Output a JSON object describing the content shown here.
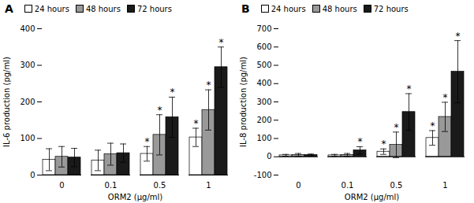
{
  "chart_data": [
    {
      "type": "bar",
      "title": "A",
      "ylabel": "IL-6 production (pg/ml)",
      "xlabel": "ORM2 (μg/ml)",
      "categories": [
        "0",
        "0.1",
        "0.5",
        "1"
      ],
      "series": [
        {
          "name": "24 hours",
          "color": "#ffffff",
          "values": [
            42,
            40,
            58,
            103
          ],
          "errors": [
            30,
            28,
            20,
            25
          ]
        },
        {
          "name": "48 hours",
          "color": "#999999",
          "values": [
            50,
            57,
            110,
            178
          ],
          "errors": [
            28,
            30,
            55,
            55
          ]
        },
        {
          "name": "72 hours",
          "color": "#1a1a1a",
          "values": [
            48,
            60,
            158,
            295
          ],
          "errors": [
            25,
            25,
            55,
            55
          ]
        }
      ],
      "annotations": [
        {
          "series": "24 hours",
          "category": "0.5",
          "text": "*"
        },
        {
          "series": "24 hours",
          "category": "1",
          "text": "*"
        },
        {
          "series": "48 hours",
          "category": "0.5",
          "text": "*"
        },
        {
          "series": "48 hours",
          "category": "1",
          "text": "*"
        },
        {
          "series": "72 hours",
          "category": "0.5",
          "text": "*"
        },
        {
          "series": "72 hours",
          "category": "1",
          "text": "*"
        }
      ],
      "ylim": [
        0,
        400
      ],
      "yticks": [
        0,
        100,
        200,
        300,
        400
      ],
      "grid": false,
      "legend": "upper left"
    },
    {
      "type": "bar",
      "title": "B",
      "ylabel": "IL-8 production (pg/ml)",
      "xlabel": "ORM2 (μg/ml)",
      "categories": [
        "0",
        "0.1",
        "0.5",
        "1"
      ],
      "series": [
        {
          "name": "24 hours",
          "color": "#ffffff",
          "values": [
            8,
            8,
            28,
            103
          ],
          "errors": [
            5,
            5,
            15,
            40
          ]
        },
        {
          "name": "48 hours",
          "color": "#999999",
          "values": [
            10,
            10,
            65,
            218
          ],
          "errors": [
            8,
            8,
            70,
            80
          ]
        },
        {
          "name": "72 hours",
          "color": "#1a1a1a",
          "values": [
            10,
            35,
            245,
            465
          ],
          "errors": [
            5,
            20,
            100,
            170
          ]
        }
      ],
      "annotations": [
        {
          "series": "24 hours",
          "category": "0.5",
          "text": "*"
        },
        {
          "series": "24 hours",
          "category": "1",
          "text": "*"
        },
        {
          "series": "48 hours",
          "category": "0.5",
          "text": "*"
        },
        {
          "series": "48 hours",
          "category": "1",
          "text": "*"
        },
        {
          "series": "72 hours",
          "category": "0.1",
          "text": "*"
        },
        {
          "series": "72 hours",
          "category": "0.5",
          "text": "*"
        },
        {
          "series": "72 hours",
          "category": "1",
          "text": "*"
        }
      ],
      "ylim": [
        -100,
        700
      ],
      "yticks": [
        -100,
        0,
        100,
        200,
        300,
        400,
        500,
        600,
        700
      ],
      "grid": false,
      "legend": "upper left"
    }
  ]
}
